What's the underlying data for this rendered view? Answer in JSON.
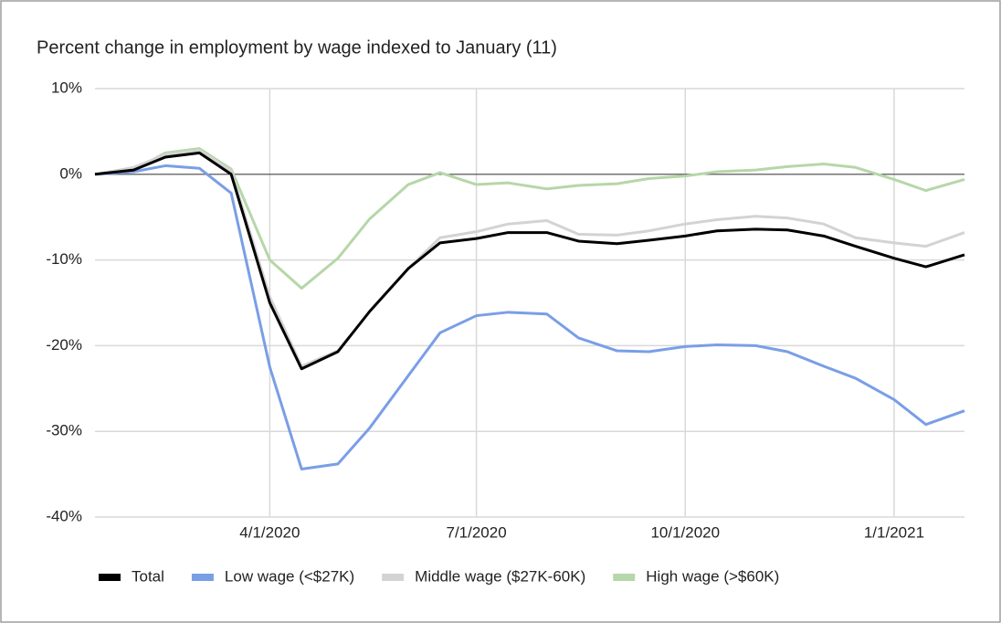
{
  "chart_data": {
    "type": "line",
    "title": "Percent change in employment by wage indexed to January (11)",
    "x": [
      "2020-01-15",
      "2020-02-01",
      "2020-02-15",
      "2020-03-01",
      "2020-03-15",
      "2020-04-01",
      "2020-04-15",
      "2020-05-01",
      "2020-05-15",
      "2020-06-01",
      "2020-06-15",
      "2020-07-01",
      "2020-07-15",
      "2020-08-01",
      "2020-08-15",
      "2020-09-01",
      "2020-09-15",
      "2020-10-01",
      "2020-10-15",
      "2020-11-01",
      "2020-11-15",
      "2020-12-01",
      "2020-12-15",
      "2021-01-01",
      "2021-01-15",
      "2021-02-01"
    ],
    "series": [
      {
        "name": "Total",
        "color": "#000000",
        "values": [
          0,
          0.5,
          2,
          2.5,
          0,
          -15,
          -22.7,
          -20.7,
          -16,
          -11,
          -8,
          -7.5,
          -6.8,
          -6.8,
          -7.8,
          -8.1,
          -7.7,
          -7.2,
          -6.6,
          -6.4,
          -6.5,
          -7.2,
          -8.4,
          -9.8,
          -10.8,
          -9.4
        ]
      },
      {
        "name": "Low wage (<$27K)",
        "color": "#7a9ee6",
        "values": [
          0,
          0.3,
          1,
          0.7,
          -2.2,
          -22.5,
          -34.4,
          -33.8,
          -29.6,
          -23.5,
          -18.5,
          -16.5,
          -16.1,
          -16.3,
          -19.1,
          -20.6,
          -20.7,
          -20.1,
          -19.9,
          -20,
          -20.7,
          -22.4,
          -23.8,
          -26.3,
          -29.2,
          -27.6
        ]
      },
      {
        "name": "Middle wage ($27K-60K)",
        "color": "#d3d3d3",
        "values": [
          0,
          0.8,
          2.3,
          2.8,
          0.4,
          -14.3,
          -22.4,
          -20.6,
          -16,
          -11,
          -7.4,
          -6.7,
          -5.8,
          -5.4,
          -7,
          -7.1,
          -6.6,
          -5.8,
          -5.3,
          -4.9,
          -5.1,
          -5.8,
          -7.4,
          -8,
          -8.4,
          -6.8
        ]
      },
      {
        "name": "High wage (>$60K)",
        "color": "#b6d7a8",
        "values": [
          0,
          0.5,
          2.5,
          3,
          0.6,
          -10,
          -13.3,
          -9.8,
          -5.2,
          -1.2,
          0.2,
          -1.2,
          -1,
          -1.7,
          -1.3,
          -1.1,
          -0.5,
          -0.2,
          0.3,
          0.5,
          0.9,
          1.2,
          0.8,
          -0.6,
          -1.9,
          -0.6
        ]
      }
    ],
    "ylim": [
      -40,
      10
    ],
    "yticks": [
      {
        "value": -40,
        "label": "-40%"
      },
      {
        "value": -30,
        "label": "-30%"
      },
      {
        "value": -20,
        "label": "-20%"
      },
      {
        "value": -10,
        "label": "-10%"
      },
      {
        "value": 0,
        "label": "0%"
      },
      {
        "value": 10,
        "label": "10%"
      }
    ],
    "xlim": [
      "2020-01-15",
      "2021-02-01"
    ],
    "xticks": [
      {
        "value": "2020-04-01",
        "label": "4/1/2020"
      },
      {
        "value": "2020-07-01",
        "label": "7/1/2020"
      },
      {
        "value": "2020-10-01",
        "label": "10/1/2020"
      },
      {
        "value": "2021-01-01",
        "label": "1/1/2021"
      }
    ],
    "grid": true,
    "legend": "bottom"
  }
}
